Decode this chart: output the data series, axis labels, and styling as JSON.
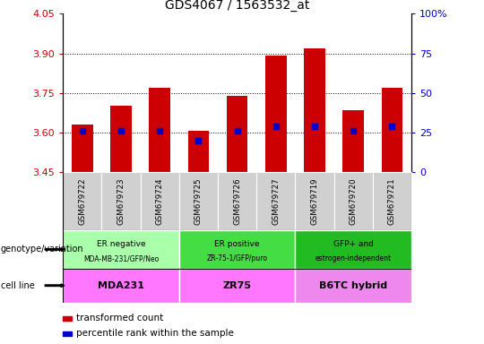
{
  "title": "GDS4067 / 1563532_at",
  "samples": [
    "GSM679722",
    "GSM679723",
    "GSM679724",
    "GSM679725",
    "GSM679726",
    "GSM679727",
    "GSM679719",
    "GSM679720",
    "GSM679721"
  ],
  "bar_values": [
    3.63,
    3.7,
    3.77,
    3.605,
    3.74,
    3.89,
    3.92,
    3.685,
    3.77
  ],
  "percentile_values": [
    26,
    26,
    26,
    20,
    26,
    29,
    29,
    26,
    29
  ],
  "ylim": [
    3.45,
    4.05
  ],
  "ylim_right": [
    0,
    100
  ],
  "yticks_left": [
    3.45,
    3.6,
    3.75,
    3.9,
    4.05
  ],
  "yticks_right": [
    0,
    25,
    50,
    75,
    100
  ],
  "gridlines": [
    3.6,
    3.75,
    3.9
  ],
  "bar_color": "#cc0000",
  "dot_color": "#0000cc",
  "bar_width": 0.55,
  "groups": [
    {
      "label": "ER negative",
      "sublabel": "MDA-MB-231/GFP/Neo",
      "start": 0,
      "end": 3,
      "color": "#aaffaa"
    },
    {
      "label": "ER positive",
      "sublabel": "ZR-75-1/GFP/puro",
      "start": 3,
      "end": 6,
      "color": "#44dd44"
    },
    {
      "label": "GFP+ and",
      "sublabel": "estrogen-independent",
      "start": 6,
      "end": 9,
      "color": "#22bb22"
    }
  ],
  "cell_lines": [
    {
      "label": "MDA231",
      "start": 0,
      "end": 3,
      "color": "#ff77ff"
    },
    {
      "label": "ZR75",
      "start": 3,
      "end": 6,
      "color": "#ff77ff"
    },
    {
      "label": "B6TC hybrid",
      "start": 6,
      "end": 9,
      "color": "#ee88ee"
    }
  ],
  "legend_red": "transformed count",
  "legend_blue": "percentile rank within the sample",
  "left_label": "genotype/variation",
  "cell_line_label": "cell line",
  "ylabel_left_color": "#cc0000",
  "ylabel_right_color": "#0000cc",
  "sample_box_color": "#d0d0d0",
  "background_color": "#ffffff"
}
